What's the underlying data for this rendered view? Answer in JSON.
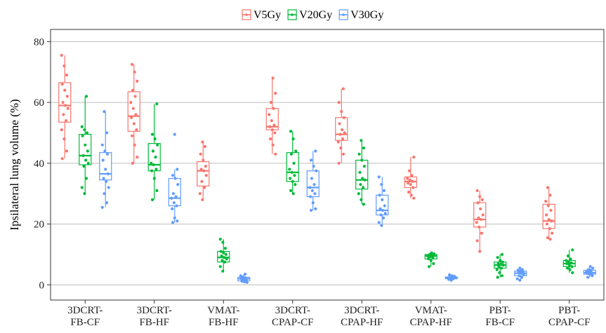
{
  "chart_data": {
    "type": "box",
    "ylabel": "Ipsilateral lung volume (%)",
    "xlabel": "",
    "ylim": [
      -5,
      84
    ],
    "yticks": [
      0,
      20,
      40,
      60,
      80
    ],
    "grid": true,
    "legend_position": "top",
    "categories": [
      [
        "3DCRT-",
        "FB-CF"
      ],
      [
        "3DCRT-",
        "FB-HF"
      ],
      [
        "VMAT-",
        "FB-HF"
      ],
      [
        "3DCRT-",
        "CPAP-CF"
      ],
      [
        "3DCRT-",
        "CPAP-HF"
      ],
      [
        "VMAT-",
        "CPAP-HF"
      ],
      [
        "PBT-",
        "FB-CF"
      ],
      [
        "PBT-",
        "CPAP-CF"
      ]
    ],
    "series": [
      {
        "name": "V5Gy",
        "color": "#F8766D",
        "boxes": [
          {
            "min": 41.5,
            "q1": 53.5,
            "median": 59,
            "q3": 66.5,
            "max": 75.5,
            "points": [
              75.5,
              72,
              69,
              66,
              64,
              62,
              60,
              59,
              58,
              56,
              54,
              51,
              48,
              44,
              41.5
            ]
          },
          {
            "min": 40,
            "q1": 50.5,
            "median": 55.5,
            "q3": 63.5,
            "max": 72.5,
            "points": [
              72.5,
              70,
              67,
              64,
              62,
              60,
              58,
              56,
              55,
              53,
              51,
              49,
              46,
              42,
              40
            ]
          },
          {
            "min": 28,
            "q1": 32.5,
            "median": 37.5,
            "q3": 40.5,
            "max": 47,
            "points": [
              47,
              45.5,
              43,
              41,
              39,
              38,
              37.5,
              36,
              34,
              32,
              30,
              28
            ]
          },
          {
            "min": 43,
            "q1": 51,
            "median": 52,
            "q3": 58,
            "max": 68,
            "points": [
              68,
              63,
              60,
              58,
              56,
              54,
              52.5,
              52,
              51,
              50,
              48,
              46,
              43
            ]
          },
          {
            "min": 40,
            "q1": 47.5,
            "median": 49.5,
            "q3": 55,
            "max": 64.5,
            "points": [
              64.5,
              60,
              57,
              55,
              53,
              51,
              50,
              49.5,
              48,
              47,
              45,
              43,
              40
            ]
          },
          {
            "min": 28.5,
            "q1": 32,
            "median": 34,
            "q3": 35.5,
            "max": 42,
            "points": [
              42,
              37.5,
              36,
              35,
              34.5,
              34,
              33.5,
              33,
              32,
              30.5,
              29.5,
              28.5
            ]
          },
          {
            "min": 11,
            "q1": 19,
            "median": 21.5,
            "q3": 27,
            "max": 31,
            "points": [
              31,
              29,
              28,
              27,
              25,
              23,
              22,
              21.5,
              20.5,
              19,
              17,
              14.5,
              11
            ]
          },
          {
            "min": 15,
            "q1": 18.5,
            "median": 21,
            "q3": 26.5,
            "max": 32,
            "points": [
              32,
              29.5,
              27.5,
              26,
              24.5,
              23,
              21.5,
              21,
              20,
              18.5,
              17,
              15.5,
              15
            ]
          }
        ]
      },
      {
        "name": "V20Gy",
        "color": "#00BA38",
        "boxes": [
          {
            "min": 30,
            "q1": 39.5,
            "median": 42.5,
            "q3": 49.5,
            "max": 62,
            "points": [
              62,
              52,
              51,
              50,
              49,
              46,
              44,
              42.5,
              41,
              40,
              39,
              35,
              32,
              30
            ]
          },
          {
            "min": 28,
            "q1": 37.5,
            "median": 39.5,
            "q3": 46.5,
            "max": 59.5,
            "points": [
              59.5,
              49.5,
              48,
              46,
              44,
              42,
              40,
              39.5,
              38,
              37.5,
              35,
              31,
              28
            ]
          },
          {
            "min": 4.5,
            "q1": 7.5,
            "median": 9,
            "q3": 11,
            "max": 15,
            "points": [
              15,
              14,
              12,
              11,
              10.5,
              10,
              9.5,
              9,
              8.5,
              8,
              7.5,
              6,
              4.5
            ]
          },
          {
            "min": 30,
            "q1": 34,
            "median": 37,
            "q3": 43.5,
            "max": 50.5,
            "points": [
              50.5,
              48,
              44,
              43,
              40,
              38,
              37,
              36,
              35,
              34,
              33,
              31,
              30
            ]
          },
          {
            "min": 26.5,
            "q1": 31.5,
            "median": 34.5,
            "q3": 41,
            "max": 47.5,
            "points": [
              47.5,
              45,
              43,
              41,
              39,
              37,
              35,
              34.5,
              33,
              32,
              30,
              28,
              26.5
            ]
          },
          {
            "min": 6,
            "q1": 8.5,
            "median": 9.5,
            "q3": 10,
            "max": 10.5,
            "points": [
              10.5,
              10.2,
              10,
              9.8,
              9.5,
              9.3,
              9,
              8.6,
              8,
              7,
              6
            ]
          },
          {
            "min": 2.5,
            "q1": 5.5,
            "median": 6.5,
            "q3": 7.5,
            "max": 10,
            "points": [
              10,
              9,
              8,
              7.5,
              7,
              6.8,
              6.5,
              6,
              5.5,
              5,
              4,
              3,
              2.5
            ]
          },
          {
            "min": 4,
            "q1": 6,
            "median": 7,
            "q3": 8,
            "max": 11.5,
            "points": [
              11.5,
              9.5,
              8.5,
              8,
              7.5,
              7.2,
              7,
              6.5,
              6,
              5.5,
              5,
              4
            ]
          }
        ]
      },
      {
        "name": "V30Gy",
        "color": "#619CFF",
        "boxes": [
          {
            "min": 25.5,
            "q1": 34.5,
            "median": 36.5,
            "q3": 43.5,
            "max": 57,
            "points": [
              57,
              50,
              46,
              44,
              43,
              41,
              38,
              36.5,
              35,
              34,
              32,
              30,
              27,
              25.5
            ]
          },
          {
            "min": 20.5,
            "q1": 26,
            "median": 28.5,
            "q3": 35,
            "max": 38,
            "points": [
              49.5,
              38,
              36,
              35,
              33,
              30,
              29,
              28.5,
              27,
              26,
              25,
              22,
              21,
              20.5
            ]
          },
          {
            "min": 0.8,
            "q1": 1.3,
            "median": 2,
            "q3": 2.5,
            "max": 3.5,
            "points": [
              3.5,
              3,
              2.6,
              2.3,
              2,
              1.8,
              1.5,
              1.2,
              1,
              0.8
            ]
          },
          {
            "min": 24.5,
            "q1": 29,
            "median": 32,
            "q3": 37.5,
            "max": 44,
            "points": [
              44,
              41,
              39,
              37.5,
              35,
              33,
              32,
              31,
              30,
              29,
              27,
              25,
              24.5
            ]
          },
          {
            "min": 19.5,
            "q1": 23,
            "median": 24.5,
            "q3": 29.5,
            "max": 35.5,
            "points": [
              35.5,
              33,
              31,
              29.5,
              28,
              26,
              25,
              24.5,
              23.5,
              23,
              22,
              20.5,
              19.5
            ]
          },
          {
            "min": 1.5,
            "q1": 2,
            "median": 2.3,
            "q3": 2.6,
            "max": 3.3,
            "points": [
              3.3,
              3,
              2.8,
              2.6,
              2.4,
              2.3,
              2.2,
              2,
              1.8,
              1.5
            ]
          },
          {
            "min": 1.5,
            "q1": 3,
            "median": 3.8,
            "q3": 4.5,
            "max": 5.5,
            "points": [
              5.5,
              5,
              4.8,
              4.5,
              4.2,
              4,
              3.8,
              3.5,
              3,
              2.5,
              2,
              1.5
            ]
          },
          {
            "min": 2.5,
            "q1": 3.5,
            "median": 4,
            "q3": 4.8,
            "max": 6,
            "points": [
              6,
              5.5,
              5,
              4.8,
              4.5,
              4.2,
              4,
              3.8,
              3.5,
              3,
              2.5
            ]
          }
        ]
      }
    ]
  }
}
